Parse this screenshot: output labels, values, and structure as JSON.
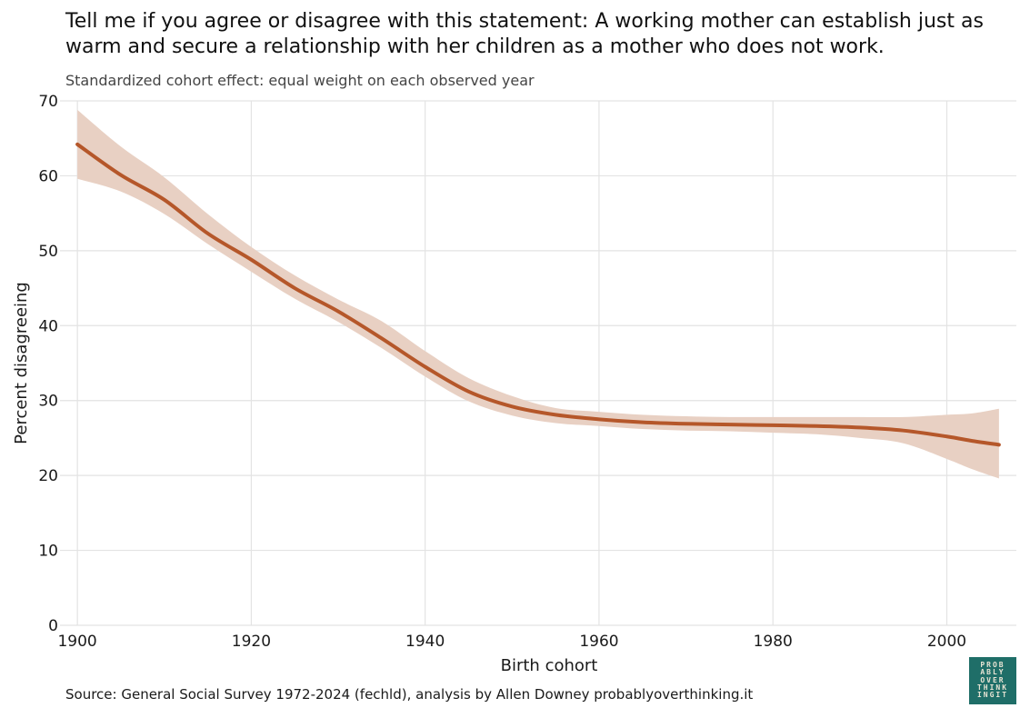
{
  "header": {
    "title": "Tell me if you agree or disagree with this statement: A working mother can establish just as warm and secure a relationship with her children as a mother who does not work.",
    "subtitle": "Standardized cohort effect: equal weight on each observed year"
  },
  "footer": {
    "source": "Source: General Social Survey 1972-2024 (fechld), analysis by Allen Downey probablyoverthinking.it"
  },
  "logo": {
    "lines": [
      "PROB",
      "ABLY",
      "OVER",
      "THINK",
      "INGIT"
    ]
  },
  "colors": {
    "line": "#b5572a",
    "band": "#e8d0c3",
    "grid": "#e3e3e3"
  },
  "chart_data": {
    "type": "line",
    "title": "",
    "xlabel": "Birth cohort",
    "ylabel": "Percent disagreeing",
    "xlim": [
      1898,
      2008
    ],
    "ylim": [
      0,
      70
    ],
    "xticks": [
      1900,
      1920,
      1940,
      1960,
      1980,
      2000
    ],
    "yticks": [
      0,
      10,
      20,
      30,
      40,
      50,
      60,
      70
    ],
    "grid": true,
    "legend": "none",
    "series": [
      {
        "x": [
          1900,
          1905,
          1910,
          1915,
          1920,
          1925,
          1930,
          1935,
          1940,
          1945,
          1950,
          1955,
          1960,
          1965,
          1970,
          1975,
          1980,
          1985,
          1990,
          1995,
          2000,
          2003,
          2006
        ],
        "y": [
          64.2,
          60.1,
          56.8,
          52.3,
          48.8,
          45.0,
          41.9,
          38.3,
          34.5,
          31.2,
          29.2,
          28.1,
          27.5,
          27.1,
          26.9,
          26.8,
          26.7,
          26.6,
          26.4,
          26.0,
          25.2,
          24.6,
          24.1
        ],
        "lower": [
          59.6,
          57.9,
          54.9,
          50.9,
          47.2,
          43.6,
          40.5,
          37.0,
          33.2,
          29.9,
          28.0,
          27.0,
          26.6,
          26.2,
          26.0,
          25.9,
          25.7,
          25.5,
          25.0,
          24.3,
          22.2,
          20.8,
          19.6
        ],
        "upper": [
          68.8,
          63.9,
          59.8,
          54.9,
          50.5,
          46.7,
          43.5,
          40.6,
          36.6,
          33.0,
          30.6,
          29.0,
          28.5,
          28.1,
          27.9,
          27.8,
          27.8,
          27.8,
          27.8,
          27.8,
          28.1,
          28.3,
          28.9
        ]
      }
    ]
  }
}
